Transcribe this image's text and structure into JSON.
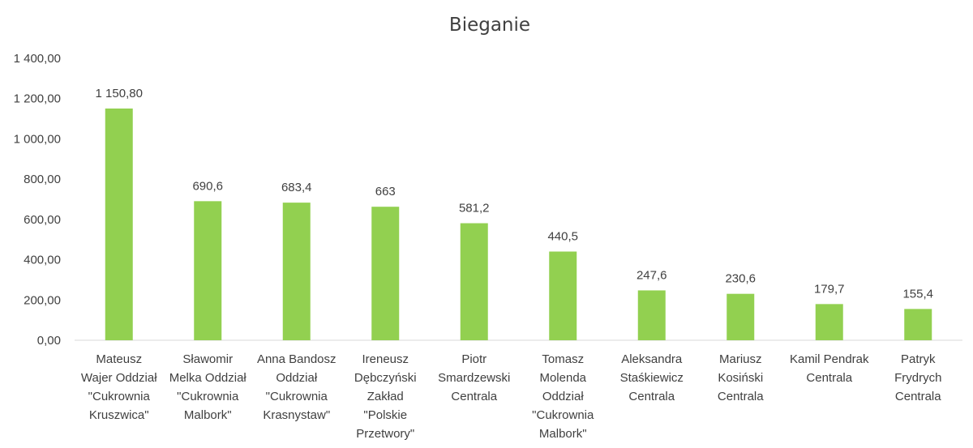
{
  "chart_data": {
    "type": "bar",
    "title": "Bieganie",
    "xlabel": "",
    "ylabel": "",
    "ylim": [
      0,
      1400
    ],
    "y_ticks": [
      "0,00",
      "200,00",
      "400,00",
      "600,00",
      "800,00",
      "1 000,00",
      "1 200,00",
      "1 400,00"
    ],
    "grid": false,
    "bar_color": "#92D050",
    "categories": [
      [
        "Mateusz",
        "Wajer Oddział",
        "\"Cukrownia",
        "Kruszwica\""
      ],
      [
        "Sławomir",
        "Melka Oddział",
        "\"Cukrownia",
        "Malbork\""
      ],
      [
        "Anna Bandosz",
        "Oddział",
        "\"Cukrownia",
        "Krasnystaw\""
      ],
      [
        "Ireneusz",
        "Dębczyński",
        "Zakład",
        "\"Polskie",
        "Przetwory\""
      ],
      [
        "Piotr",
        "Smardzewski",
        "Centrala"
      ],
      [
        "Tomasz",
        "Molenda",
        "Oddział",
        "\"Cukrownia",
        "Malbork\""
      ],
      [
        "Aleksandra",
        "Staśkiewicz",
        "Centrala"
      ],
      [
        "Mariusz",
        "Kosiński",
        "Centrala"
      ],
      [
        "Kamil Pendrak",
        "Centrala"
      ],
      [
        "Patryk",
        "Frydrych",
        "Centrala"
      ]
    ],
    "values": [
      1150.8,
      690.6,
      683.4,
      663,
      581.2,
      440.5,
      247.6,
      230.6,
      179.7,
      155.4
    ],
    "data_labels": [
      "1 150,80",
      "690,6",
      "683,4",
      "663",
      "581,2",
      "440,5",
      "247,6",
      "230,6",
      "179,7",
      "155,4"
    ]
  }
}
